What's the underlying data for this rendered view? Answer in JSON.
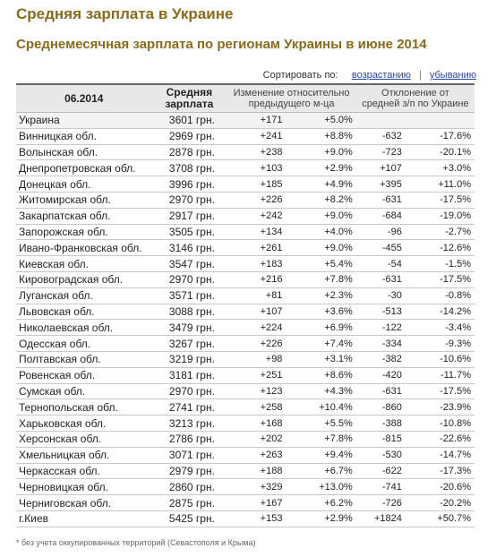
{
  "title": "Средняя зарплата в Украине",
  "subtitle": "Среднемесячная зарплата по регионам Украины в июне 2014",
  "sort": {
    "label": "Сортировать по:",
    "asc": "возрастанию",
    "separator": "|",
    "desc": "убыванию"
  },
  "table": {
    "headers": {
      "date": "06.2014",
      "avg_line1": "Средняя",
      "avg_line2": "зарплата",
      "change_line1": "Изменение относительно",
      "change_line2": "предыдущего м-ца",
      "dev_line1": "Отклонение от",
      "dev_line2": "средней з/п по Украине"
    },
    "rows": [
      {
        "region": "Украина",
        "salary": "3601 грн.",
        "chg_abs": "+171",
        "chg_pct": "+5.0%",
        "dev_abs": "",
        "dev_pct": ""
      },
      {
        "region": "Винницкая обл.",
        "salary": "2969 грн.",
        "chg_abs": "+241",
        "chg_pct": "+8.8%",
        "dev_abs": "-632",
        "dev_pct": "-17.6%"
      },
      {
        "region": "Волынская обл.",
        "salary": "2878 грн.",
        "chg_abs": "+238",
        "chg_pct": "+9.0%",
        "dev_abs": "-723",
        "dev_pct": "-20.1%"
      },
      {
        "region": "Днепропетровская обл.",
        "salary": "3708 грн.",
        "chg_abs": "+103",
        "chg_pct": "+2.9%",
        "dev_abs": "+107",
        "dev_pct": "+3.0%"
      },
      {
        "region": "Донецкая обл.",
        "salary": "3996 грн.",
        "chg_abs": "+185",
        "chg_pct": "+4.9%",
        "dev_abs": "+395",
        "dev_pct": "+11.0%"
      },
      {
        "region": "Житомирская обл.",
        "salary": "2970 грн.",
        "chg_abs": "+226",
        "chg_pct": "+8.2%",
        "dev_abs": "-631",
        "dev_pct": "-17.5%"
      },
      {
        "region": "Закарпатская обл.",
        "salary": "2917 грн.",
        "chg_abs": "+242",
        "chg_pct": "+9.0%",
        "dev_abs": "-684",
        "dev_pct": "-19.0%"
      },
      {
        "region": "Запорожская обл.",
        "salary": "3505 грн.",
        "chg_abs": "+134",
        "chg_pct": "+4.0%",
        "dev_abs": "-96",
        "dev_pct": "-2.7%"
      },
      {
        "region": "Ивано-Франковская обл.",
        "salary": "3146 грн.",
        "chg_abs": "+261",
        "chg_pct": "+9.0%",
        "dev_abs": "-455",
        "dev_pct": "-12.6%"
      },
      {
        "region": "Киевская обл.",
        "salary": "3547 грн.",
        "chg_abs": "+183",
        "chg_pct": "+5.4%",
        "dev_abs": "-54",
        "dev_pct": "-1.5%"
      },
      {
        "region": "Кировоградская обл.",
        "salary": "2970 грн.",
        "chg_abs": "+216",
        "chg_pct": "+7.8%",
        "dev_abs": "-631",
        "dev_pct": "-17.5%"
      },
      {
        "region": "Луганская обл.",
        "salary": "3571 грн.",
        "chg_abs": "+81",
        "chg_pct": "+2.3%",
        "dev_abs": "-30",
        "dev_pct": "-0.8%"
      },
      {
        "region": "Львовская обл.",
        "salary": "3088 грн.",
        "chg_abs": "+107",
        "chg_pct": "+3.6%",
        "dev_abs": "-513",
        "dev_pct": "-14.2%"
      },
      {
        "region": "Николаевская обл.",
        "salary": "3479 грн.",
        "chg_abs": "+224",
        "chg_pct": "+6.9%",
        "dev_abs": "-122",
        "dev_pct": "-3.4%"
      },
      {
        "region": "Одесская обл.",
        "salary": "3267 грн.",
        "chg_abs": "+226",
        "chg_pct": "+7.4%",
        "dev_abs": "-334",
        "dev_pct": "-9.3%"
      },
      {
        "region": "Полтавская обл.",
        "salary": "3219 грн.",
        "chg_abs": "+98",
        "chg_pct": "+3.1%",
        "dev_abs": "-382",
        "dev_pct": "-10.6%"
      },
      {
        "region": "Ровенская обл.",
        "salary": "3181 грн.",
        "chg_abs": "+251",
        "chg_pct": "+8.6%",
        "dev_abs": "-420",
        "dev_pct": "-11.7%"
      },
      {
        "region": "Сумская обл.",
        "salary": "2970 грн.",
        "chg_abs": "+123",
        "chg_pct": "+4.3%",
        "dev_abs": "-631",
        "dev_pct": "-17.5%"
      },
      {
        "region": "Тернопольская обл.",
        "salary": "2741 грн.",
        "chg_abs": "+258",
        "chg_pct": "+10.4%",
        "dev_abs": "-860",
        "dev_pct": "-23.9%"
      },
      {
        "region": "Харьковская обл.",
        "salary": "3213 грн.",
        "chg_abs": "+168",
        "chg_pct": "+5.5%",
        "dev_abs": "-388",
        "dev_pct": "-10.8%"
      },
      {
        "region": "Херсонская обл.",
        "salary": "2786 грн.",
        "chg_abs": "+202",
        "chg_pct": "+7.8%",
        "dev_abs": "-815",
        "dev_pct": "-22.6%"
      },
      {
        "region": "Хмельницкая обл.",
        "salary": "3071 грн.",
        "chg_abs": "+263",
        "chg_pct": "+9.4%",
        "dev_abs": "-530",
        "dev_pct": "-14.7%"
      },
      {
        "region": "Черкасская обл.",
        "salary": "2979 грн.",
        "chg_abs": "+188",
        "chg_pct": "+6.7%",
        "dev_abs": "-622",
        "dev_pct": "-17.3%"
      },
      {
        "region": "Черновицкая обл.",
        "salary": "2860 грн.",
        "chg_abs": "+329",
        "chg_pct": "+13.0%",
        "dev_abs": "-741",
        "dev_pct": "-20.6%"
      },
      {
        "region": "Черниговская обл.",
        "salary": "2875 грн.",
        "chg_abs": "+167",
        "chg_pct": "+6.2%",
        "dev_abs": "-726",
        "dev_pct": "-20.2%"
      },
      {
        "region": "г.Киев",
        "salary": "5425 грн.",
        "chg_abs": "+153",
        "chg_pct": "+2.9%",
        "dev_abs": "+1824",
        "dev_pct": "+50.7%"
      }
    ]
  },
  "footnote": "* без учета оккупированных территорий (Севастополя и Крыма)",
  "colors": {
    "heading": "#8a6a1c",
    "link": "#2a4aa8",
    "header_bg": "#e8e8e8"
  }
}
